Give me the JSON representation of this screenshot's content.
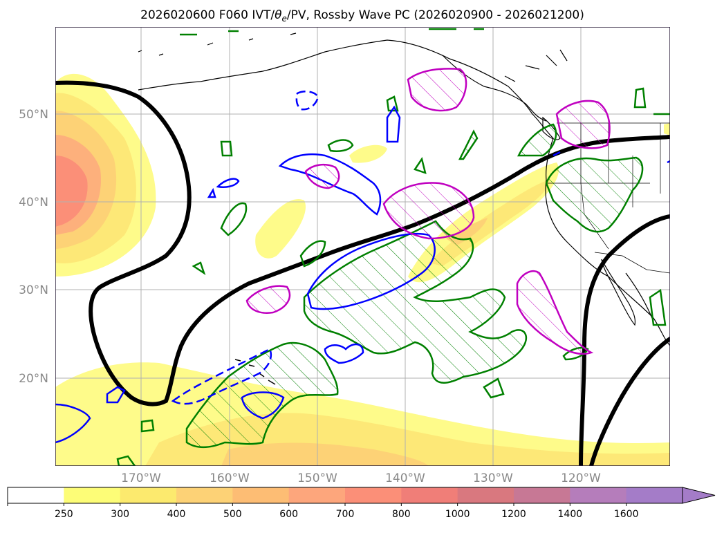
{
  "title": {
    "prefix": "2026020600 F060 IVT/",
    "theta": "θ",
    "theta_sub": "e",
    "suffix": "/PV, Rossby Wave PC (2026020900 - 2026021200)"
  },
  "map": {
    "lat_labels": [
      "50°N",
      "40°N",
      "30°N",
      "20°N"
    ],
    "lon_labels": [
      "170°W",
      "160°W",
      "150°W",
      "140°W",
      "130°W",
      "120°W"
    ],
    "colors": {
      "frame": "#2a1e3a",
      "grid": "#b0b0b0",
      "coast": "#000000",
      "contour_thick": "#000000",
      "green_contour": "#008000",
      "blue_contour": "#0000ff",
      "magenta_contour": "#c000c0"
    },
    "layers": {
      "ivt_fill": "ivt-shading",
      "coastlines": "coastlines",
      "jet_contour": "thick-black-contour",
      "green": "positive-pc-contour",
      "blue": "theta-e-contour",
      "magenta": "pv-contour"
    }
  },
  "colorbar": {
    "ticks": [
      "250",
      "300",
      "400",
      "500",
      "600",
      "700",
      "800",
      "1000",
      "1200",
      "1400",
      "1600"
    ],
    "colors": [
      "#ffffff",
      "#fdfd77",
      "#fcea6e",
      "#fdd276",
      "#fdbd74",
      "#fda67c",
      "#fb8f78",
      "#f07e78",
      "#d9787f",
      "#c77895",
      "#b57dbb",
      "#a47cc8"
    ],
    "extend": "max"
  }
}
